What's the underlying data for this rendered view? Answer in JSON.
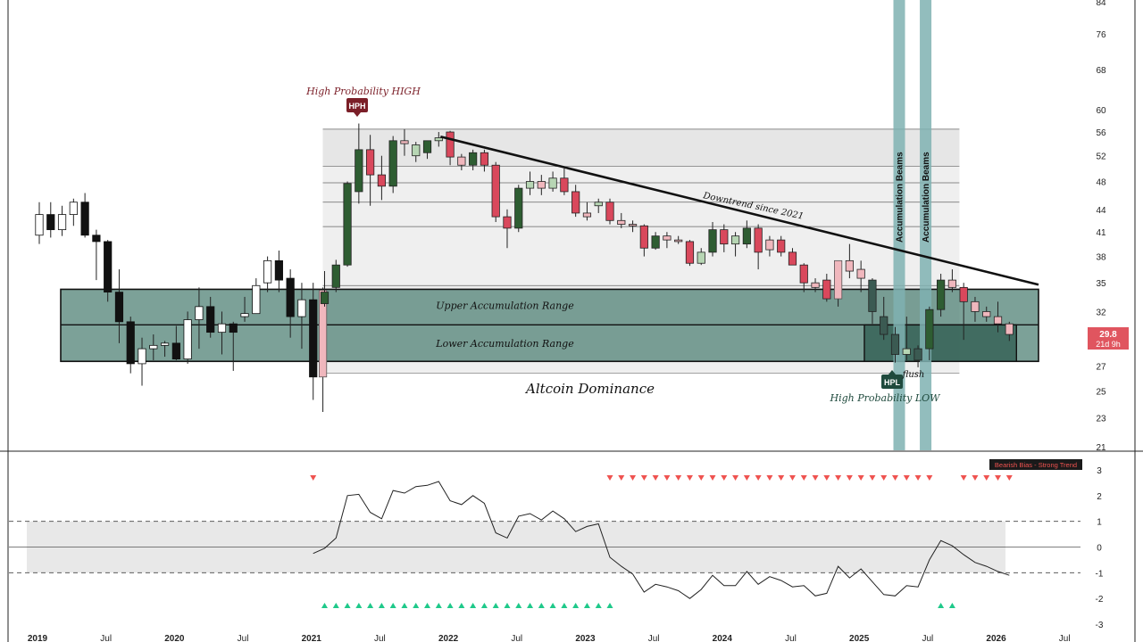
{
  "chart_data": [
    {
      "type": "candlestick",
      "title": "Altcoin Dominance",
      "scale": "log",
      "ylim": [
        21,
        84
      ],
      "y_ticks": [
        84,
        76,
        68,
        60,
        56,
        52,
        48,
        44,
        41,
        38,
        35,
        32,
        29.8,
        27,
        25,
        23,
        21
      ],
      "x_ticks": [
        "2019",
        "Jul",
        "2020",
        "Jul",
        "2021",
        "Jul",
        "2022",
        "Jul",
        "2023",
        "Jul",
        "2024",
        "Jul",
        "2025",
        "Jul",
        "2026",
        "Jul"
      ],
      "x_range": [
        "2019-01",
        "2026-08"
      ],
      "last_price": "29.8",
      "countdown": "21d 9h",
      "bias_label": "Bearish Bias - Strong Trend",
      "candles": [
        {
          "t": "2019-01",
          "o": 40.6,
          "h": 45.0,
          "l": 39.5,
          "c": 43.3
        },
        {
          "t": "2019-02",
          "o": 43.3,
          "h": 45.0,
          "l": 40.3,
          "c": 41.3
        },
        {
          "t": "2019-03",
          "o": 41.3,
          "h": 44.5,
          "l": 40.5,
          "c": 43.3
        },
        {
          "t": "2019-04",
          "o": 43.3,
          "h": 45.5,
          "l": 41.8,
          "c": 45.0
        },
        {
          "t": "2019-05",
          "o": 45.0,
          "h": 46.3,
          "l": 40.3,
          "c": 40.6
        },
        {
          "t": "2019-06",
          "o": 40.6,
          "h": 41.3,
          "l": 35.3,
          "c": 39.8
        },
        {
          "t": "2019-07",
          "o": 39.8,
          "h": 40.0,
          "l": 33.0,
          "c": 34.0
        },
        {
          "t": "2019-08",
          "o": 34.0,
          "h": 36.5,
          "l": 29.0,
          "c": 31.0
        },
        {
          "t": "2019-09",
          "o": 31.0,
          "h": 31.5,
          "l": 26.4,
          "c": 27.2
        },
        {
          "t": "2019-10",
          "o": 27.2,
          "h": 29.5,
          "l": 25.4,
          "c": 28.5
        },
        {
          "t": "2019-11",
          "o": 28.5,
          "h": 29.8,
          "l": 27.5,
          "c": 28.8
        },
        {
          "t": "2019-12",
          "o": 28.8,
          "h": 29.2,
          "l": 27.8,
          "c": 29.0
        },
        {
          "t": "2020-01",
          "o": 29.0,
          "h": 30.6,
          "l": 27.5,
          "c": 27.6
        },
        {
          "t": "2020-02",
          "o": 27.6,
          "h": 32.0,
          "l": 27.2,
          "c": 31.2
        },
        {
          "t": "2020-03",
          "o": 31.2,
          "h": 34.5,
          "l": 28.5,
          "c": 32.5
        },
        {
          "t": "2020-04",
          "o": 32.5,
          "h": 33.5,
          "l": 29.5,
          "c": 30.0
        },
        {
          "t": "2020-05",
          "o": 30.0,
          "h": 32.0,
          "l": 28.0,
          "c": 30.8
        },
        {
          "t": "2020-06",
          "o": 30.8,
          "h": 31.0,
          "l": 26.6,
          "c": 30.0
        },
        {
          "t": "2020-07",
          "o": 31.5,
          "h": 33.5,
          "l": 31.0,
          "c": 31.8
        },
        {
          "t": "2020-08",
          "o": 31.8,
          "h": 35.5,
          "l": 31.8,
          "c": 34.7
        },
        {
          "t": "2020-09",
          "o": 35.0,
          "h": 38.0,
          "l": 34.0,
          "c": 37.5
        },
        {
          "t": "2020-10",
          "o": 37.5,
          "h": 38.7,
          "l": 34.0,
          "c": 35.3
        },
        {
          "t": "2020-11",
          "o": 35.5,
          "h": 36.5,
          "l": 29.5,
          "c": 31.5
        },
        {
          "t": "2020-12",
          "o": 31.5,
          "h": 35.0,
          "l": 28.5,
          "c": 33.2
        },
        {
          "t": "2021-01",
          "o": 33.2,
          "h": 35.0,
          "l": 24.3,
          "c": 26.1
        },
        {
          "t": "2021-01b",
          "o": 26.1,
          "h": 34.5,
          "l": 23.4,
          "c": 34.2,
          "color": "pink"
        },
        {
          "t": "2021-02",
          "o": 32.8,
          "h": 36.3,
          "l": 32.5,
          "c": 34.0
        },
        {
          "t": "2021-03",
          "o": 34.5,
          "h": 37.6,
          "l": 34.0,
          "c": 37.0
        },
        {
          "t": "2021-04",
          "o": 37.0,
          "h": 48.0,
          "l": 36.8,
          "c": 47.7
        },
        {
          "t": "2021-05",
          "o": 46.5,
          "h": 57.5,
          "l": 44.8,
          "c": 53.0
        },
        {
          "t": "2021-06",
          "o": 53.0,
          "h": 55.5,
          "l": 44.5,
          "c": 49.0
        },
        {
          "t": "2021-07",
          "o": 49.0,
          "h": 52.0,
          "l": 45.3,
          "c": 47.3
        },
        {
          "t": "2021-08",
          "o": 47.3,
          "h": 55.3,
          "l": 46.3,
          "c": 54.5
        },
        {
          "t": "2021-09",
          "o": 54.5,
          "h": 56.5,
          "l": 52.0,
          "c": 54.0
        },
        {
          "t": "2021-10",
          "o": 52.0,
          "h": 54.3,
          "l": 51.0,
          "c": 53.8
        },
        {
          "t": "2021-11",
          "o": 52.5,
          "h": 54.5,
          "l": 51.5,
          "c": 54.5
        },
        {
          "t": "2021-12",
          "o": 54.5,
          "h": 56.0,
          "l": 53.5,
          "c": 55.0
        },
        {
          "t": "2022-01",
          "o": 56.0,
          "h": 56.2,
          "l": 50.5,
          "c": 51.8
        },
        {
          "t": "2022-02",
          "o": 51.8,
          "h": 52.3,
          "l": 49.7,
          "c": 50.5
        },
        {
          "t": "2022-03",
          "o": 50.5,
          "h": 53.0,
          "l": 49.7,
          "c": 52.5
        },
        {
          "t": "2022-04",
          "o": 52.5,
          "h": 53.0,
          "l": 49.5,
          "c": 50.5
        },
        {
          "t": "2022-05",
          "o": 50.5,
          "h": 51.0,
          "l": 42.3,
          "c": 43.0
        },
        {
          "t": "2022-06",
          "o": 43.0,
          "h": 44.0,
          "l": 39.0,
          "c": 41.5
        },
        {
          "t": "2022-07",
          "o": 41.5,
          "h": 47.5,
          "l": 41.0,
          "c": 47.0
        },
        {
          "t": "2022-08",
          "o": 47.0,
          "h": 49.5,
          "l": 46.0,
          "c": 48.0
        },
        {
          "t": "2022-09",
          "o": 48.0,
          "h": 49.0,
          "l": 46.0,
          "c": 47.0
        },
        {
          "t": "2022-10",
          "o": 47.0,
          "h": 49.5,
          "l": 46.5,
          "c": 48.5
        },
        {
          "t": "2022-11",
          "o": 48.5,
          "h": 50.0,
          "l": 46.0,
          "c": 46.5
        },
        {
          "t": "2022-12",
          "o": 46.5,
          "h": 47.5,
          "l": 43.0,
          "c": 43.5
        },
        {
          "t": "2023-01",
          "o": 43.5,
          "h": 45.0,
          "l": 42.5,
          "c": 43.0
        },
        {
          "t": "2023-02",
          "o": 44.5,
          "h": 45.5,
          "l": 43.5,
          "c": 45.0
        },
        {
          "t": "2023-03",
          "o": 45.0,
          "h": 45.5,
          "l": 42.0,
          "c": 42.5
        },
        {
          "t": "2023-04",
          "o": 42.5,
          "h": 43.5,
          "l": 41.5,
          "c": 42.0
        },
        {
          "t": "2023-05",
          "o": 42.0,
          "h": 42.5,
          "l": 41.0,
          "c": 41.8
        },
        {
          "t": "2023-06",
          "o": 41.8,
          "h": 42.0,
          "l": 38.0,
          "c": 39.0
        },
        {
          "t": "2023-07",
          "o": 39.0,
          "h": 41.0,
          "l": 38.8,
          "c": 40.5
        },
        {
          "t": "2023-08",
          "o": 40.5,
          "h": 41.0,
          "l": 39.0,
          "c": 40.0
        },
        {
          "t": "2023-09",
          "o": 40.0,
          "h": 40.5,
          "l": 39.5,
          "c": 39.8
        },
        {
          "t": "2023-10",
          "o": 39.8,
          "h": 40.0,
          "l": 36.9,
          "c": 37.2
        },
        {
          "t": "2023-11",
          "o": 37.2,
          "h": 39.0,
          "l": 37.0,
          "c": 38.5
        },
        {
          "t": "2023-12",
          "o": 38.5,
          "h": 42.3,
          "l": 38.0,
          "c": 41.3
        },
        {
          "t": "2024-01",
          "o": 41.3,
          "h": 42.0,
          "l": 38.5,
          "c": 39.5
        },
        {
          "t": "2024-02",
          "o": 39.5,
          "h": 41.0,
          "l": 38.0,
          "c": 40.5
        },
        {
          "t": "2024-03",
          "o": 39.5,
          "h": 42.5,
          "l": 39.0,
          "c": 41.5
        },
        {
          "t": "2024-04",
          "o": 41.5,
          "h": 42.0,
          "l": 36.5,
          "c": 38.5
        },
        {
          "t": "2024-05",
          "o": 40.0,
          "h": 40.5,
          "l": 38.0,
          "c": 38.8
        },
        {
          "t": "2024-06",
          "o": 40.0,
          "h": 40.5,
          "l": 38.0,
          "c": 38.5
        },
        {
          "t": "2024-07",
          "o": 38.5,
          "h": 39.0,
          "l": 37.0,
          "c": 37.0
        },
        {
          "t": "2024-08",
          "o": 37.0,
          "h": 37.2,
          "l": 34.0,
          "c": 35.0
        },
        {
          "t": "2024-09",
          "o": 35.0,
          "h": 35.5,
          "l": 34.0,
          "c": 34.5
        },
        {
          "t": "2024-10",
          "o": 35.3,
          "h": 36.0,
          "l": 33.0,
          "c": 33.3
        },
        {
          "t": "2024-11",
          "o": 33.3,
          "h": 37.5,
          "l": 32.5,
          "c": 37.5,
          "color": "pink"
        },
        {
          "t": "2024-12",
          "o": 37.5,
          "h": 39.5,
          "l": 35.5,
          "c": 36.3
        },
        {
          "t": "2025-01",
          "o": 36.5,
          "h": 37.5,
          "l": 34.0,
          "c": 35.5
        },
        {
          "t": "2025-02",
          "o": 35.3,
          "h": 35.5,
          "l": 30.8,
          "c": 32.0
        },
        {
          "t": "2025-03",
          "o": 31.5,
          "h": 33.5,
          "l": 29.3,
          "c": 29.8
        },
        {
          "t": "2025-04",
          "o": 29.8,
          "h": 30.5,
          "l": 27.3,
          "c": 28.0
        },
        {
          "t": "2025-05",
          "o": 28.0,
          "h": 31.5,
          "l": 27.5,
          "c": 28.5
        },
        {
          "t": "2025-06",
          "o": 28.5,
          "h": 28.8,
          "l": 26.9,
          "c": 27.5
        },
        {
          "t": "2025-07",
          "o": 28.5,
          "h": 32.5,
          "l": 27.5,
          "c": 32.2
        },
        {
          "t": "2025-08",
          "o": 32.2,
          "h": 36.0,
          "l": 31.5,
          "c": 35.3
        },
        {
          "t": "2025-09",
          "o": 35.3,
          "h": 36.5,
          "l": 34.0,
          "c": 34.5
        },
        {
          "t": "2025-10",
          "o": 34.5,
          "h": 35.0,
          "l": 29.3,
          "c": 33.0
        },
        {
          "t": "2025-11",
          "o": 33.0,
          "h": 33.5,
          "l": 31.0,
          "c": 32.0
        },
        {
          "t": "2025-12",
          "o": 32.0,
          "h": 32.5,
          "l": 31.0,
          "c": 31.5
        },
        {
          "t": "2026-01",
          "o": 31.5,
          "h": 33.0,
          "l": 30.0,
          "c": 30.8
        },
        {
          "t": "2026-02",
          "o": 30.8,
          "h": 31.0,
          "l": 29.2,
          "c": 29.8
        }
      ],
      "annotations": {
        "hph_label": "High Probability HIGH",
        "hph_badge": "HPH",
        "hpl_label": "High Probability LOW",
        "hpl_badge": "HPL",
        "upper_range": "Upper Accumulation Range",
        "lower_range": "Lower Accumulation Range",
        "downtrend": "Downtrend since 2021",
        "beam": "Accumulation Beams",
        "flush": "flush"
      },
      "levels": [
        56.5,
        50.3,
        47.8,
        45.0,
        41.7,
        34.7
      ],
      "colors": {
        "bull_dark": "#2e5d32",
        "bull_light": "#b7d6b4",
        "bear_dark": "#d9485c",
        "bear_light": "#f0b7bd",
        "mono_bear": "#111111",
        "mono_bull": "#ffffff",
        "zone": "#4a7d70",
        "beam": "#7fb2b1",
        "shade": "#e6e6e6",
        "hph": "#7b1f28",
        "hpl": "#1f4a3d",
        "trend": "#111111",
        "price_tag": "#e0555f"
      }
    },
    {
      "type": "line",
      "ylim": [
        -3,
        3
      ],
      "y_ticks": [
        3,
        2,
        1,
        0,
        -1,
        -2,
        -3
      ],
      "series": [
        {
          "values": [
            {
              "t": "2021-01",
              "v": -0.25
            },
            {
              "t": "2021-02",
              "v": -0.05
            },
            {
              "t": "2021-03",
              "v": 0.35
            },
            {
              "t": "2021-04",
              "v": 2.0
            },
            {
              "t": "2021-05",
              "v": 2.05
            },
            {
              "t": "2021-06",
              "v": 1.35
            },
            {
              "t": "2021-07",
              "v": 1.1
            },
            {
              "t": "2021-08",
              "v": 2.2
            },
            {
              "t": "2021-09",
              "v": 2.1
            },
            {
              "t": "2021-10",
              "v": 2.35
            },
            {
              "t": "2021-11",
              "v": 2.4
            },
            {
              "t": "2021-12",
              "v": 2.55
            },
            {
              "t": "2022-01",
              "v": 1.8
            },
            {
              "t": "2022-02",
              "v": 1.65
            },
            {
              "t": "2022-03",
              "v": 2.0
            },
            {
              "t": "2022-04",
              "v": 1.7
            },
            {
              "t": "2022-05",
              "v": 0.55
            },
            {
              "t": "2022-06",
              "v": 0.35
            },
            {
              "t": "2022-07",
              "v": 1.2
            },
            {
              "t": "2022-08",
              "v": 1.3
            },
            {
              "t": "2022-09",
              "v": 1.05
            },
            {
              "t": "2022-10",
              "v": 1.4
            },
            {
              "t": "2022-11",
              "v": 1.1
            },
            {
              "t": "2022-12",
              "v": 0.6
            },
            {
              "t": "2023-01",
              "v": 0.8
            },
            {
              "t": "2023-02",
              "v": 0.9
            },
            {
              "t": "2023-03",
              "v": -0.4
            },
            {
              "t": "2023-04",
              "v": -0.75
            },
            {
              "t": "2023-05",
              "v": -1.05
            },
            {
              "t": "2023-06",
              "v": -1.75
            },
            {
              "t": "2023-07",
              "v": -1.45
            },
            {
              "t": "2023-08",
              "v": -1.55
            },
            {
              "t": "2023-09",
              "v": -1.7
            },
            {
              "t": "2023-10",
              "v": -2.0
            },
            {
              "t": "2023-11",
              "v": -1.65
            },
            {
              "t": "2023-12",
              "v": -1.1
            },
            {
              "t": "2024-01",
              "v": -1.5
            },
            {
              "t": "2024-02",
              "v": -1.5
            },
            {
              "t": "2024-03",
              "v": -0.95
            },
            {
              "t": "2024-04",
              "v": -1.45
            },
            {
              "t": "2024-05",
              "v": -1.15
            },
            {
              "t": "2024-06",
              "v": -1.3
            },
            {
              "t": "2024-07",
              "v": -1.55
            },
            {
              "t": "2024-08",
              "v": -1.5
            },
            {
              "t": "2024-09",
              "v": -1.9
            },
            {
              "t": "2024-10",
              "v": -1.8
            },
            {
              "t": "2024-11",
              "v": -0.75
            },
            {
              "t": "2024-12",
              "v": -1.2
            },
            {
              "t": "2025-01",
              "v": -0.85
            },
            {
              "t": "2025-02",
              "v": -1.35
            },
            {
              "t": "2025-03",
              "v": -1.85
            },
            {
              "t": "2025-04",
              "v": -1.9
            },
            {
              "t": "2025-05",
              "v": -1.5
            },
            {
              "t": "2025-06",
              "v": -1.55
            },
            {
              "t": "2025-07",
              "v": -0.5
            },
            {
              "t": "2025-08",
              "v": 0.25
            },
            {
              "t": "2025-09",
              "v": 0.05
            },
            {
              "t": "2025-10",
              "v": -0.3
            },
            {
              "t": "2025-11",
              "v": -0.6
            },
            {
              "t": "2025-12",
              "v": -0.75
            },
            {
              "t": "2026-01",
              "v": -0.95
            },
            {
              "t": "2026-02",
              "v": -1.1
            }
          ]
        }
      ],
      "band": [
        -1,
        1
      ],
      "bear_markers": [
        "2021-01",
        "2023-03",
        "2023-04",
        "2023-05",
        "2023-06",
        "2023-07",
        "2023-08",
        "2023-09",
        "2023-10",
        "2023-11",
        "2023-12",
        "2024-01",
        "2024-02",
        "2024-03",
        "2024-04",
        "2024-05",
        "2024-06",
        "2024-07",
        "2024-08",
        "2024-09",
        "2024-10",
        "2024-11",
        "2024-12",
        "2025-01",
        "2025-02",
        "2025-03",
        "2025-04",
        "2025-05",
        "2025-06",
        "2025-07",
        "2025-10",
        "2025-11",
        "2025-12",
        "2026-01",
        "2026-02"
      ],
      "bull_markers": [
        "2021-02",
        "2021-03",
        "2021-04",
        "2021-05",
        "2021-06",
        "2021-07",
        "2021-08",
        "2021-09",
        "2021-10",
        "2021-11",
        "2021-12",
        "2022-01",
        "2022-02",
        "2022-03",
        "2022-04",
        "2022-05",
        "2022-06",
        "2022-07",
        "2022-08",
        "2022-09",
        "2022-10",
        "2022-11",
        "2022-12",
        "2023-01",
        "2023-02",
        "2023-03",
        "2025-08",
        "2025-09"
      ]
    }
  ]
}
